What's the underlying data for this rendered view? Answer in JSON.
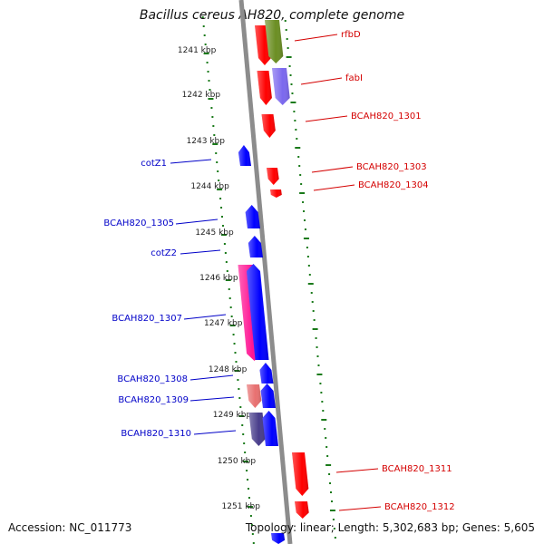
{
  "title": "Bacillus cereus AH820, complete genome",
  "footer": {
    "accession": "Accession: NC_011773",
    "summary": "Topology: linear; Length: 5,302,683 bp; Genes: 5,605"
  },
  "colors": {
    "backbone": "#8c8c8c",
    "tick": "#1a7a1a",
    "forward_label": "#0000c8",
    "reverse_label": "#d40000",
    "red": "#ff0000",
    "blue": "#0000ff",
    "pink": "#ff1493",
    "lightred": "#e87070",
    "olive": "#6b8e23",
    "purple": "#7b68ee",
    "slate": "#483d8b"
  },
  "scale_labels": [
    "1241 kbp",
    "1242 kbp",
    "1243 kbp",
    "1244 kbp",
    "1245 kbp",
    "1246 kbp",
    "1247 kbp",
    "1248 kbp",
    "1249 kbp",
    "1250 kbp",
    "1251 kbp"
  ],
  "genes": [
    {
      "label": "rfbD",
      "side": "right"
    },
    {
      "label": "fabI",
      "side": "right"
    },
    {
      "label": "BCAH820_1301",
      "side": "right"
    },
    {
      "label": "cotZ1",
      "side": "left"
    },
    {
      "label": "BCAH820_1303",
      "side": "right"
    },
    {
      "label": "BCAH820_1304",
      "side": "right"
    },
    {
      "label": "BCAH820_1305",
      "side": "left"
    },
    {
      "label": "cotZ2",
      "side": "left"
    },
    {
      "label": "BCAH820_1307",
      "side": "left"
    },
    {
      "label": "BCAH820_1308",
      "side": "left"
    },
    {
      "label": "BCAH820_1309",
      "side": "left"
    },
    {
      "label": "BCAH820_1310",
      "side": "left"
    },
    {
      "label": "BCAH820_1311",
      "side": "right"
    },
    {
      "label": "BCAH820_1312",
      "side": "right"
    }
  ]
}
